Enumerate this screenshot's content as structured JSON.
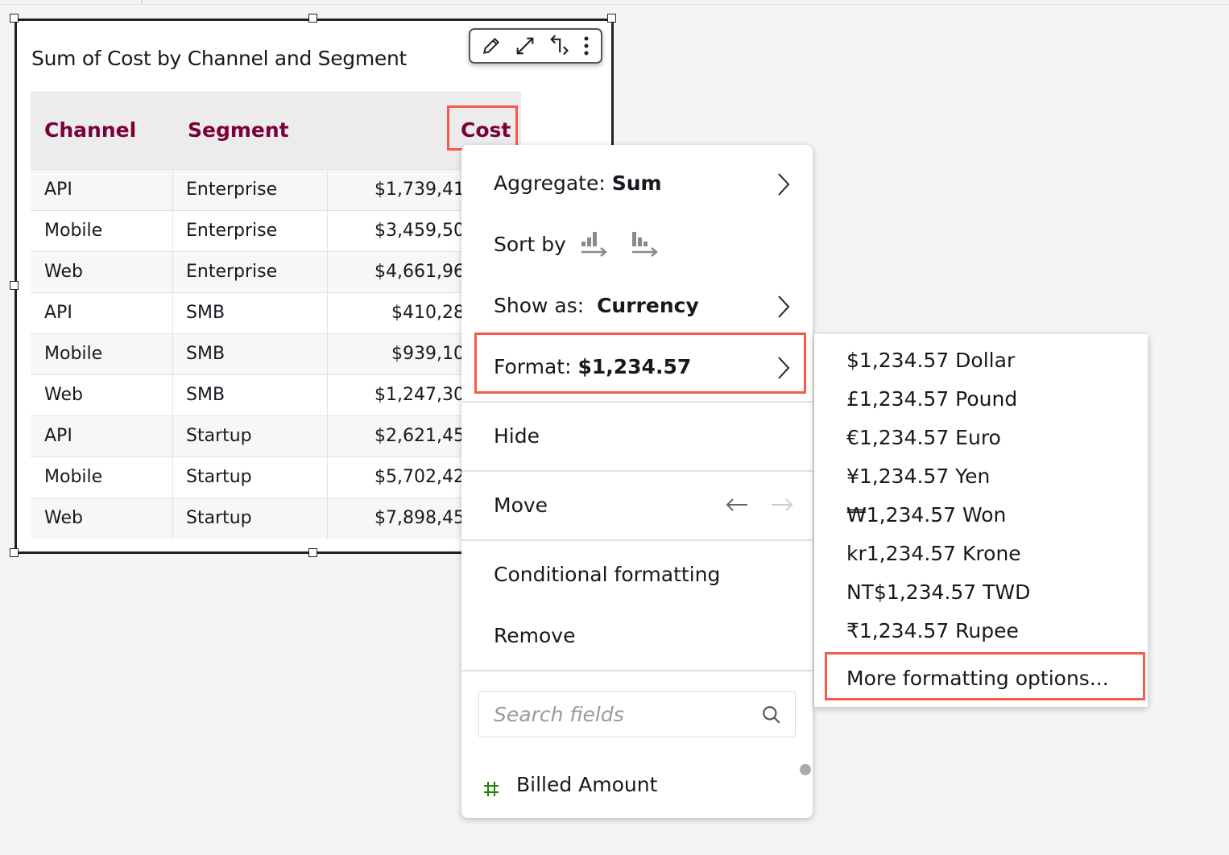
{
  "visual": {
    "title": "Sum of Cost by Channel and Segment",
    "toolbar": [
      "pencil-icon",
      "expand-icon",
      "swap-icon",
      "more-vertical-icon"
    ],
    "table": {
      "columns": [
        "Channel",
        "Segment",
        "Cost"
      ],
      "rows": [
        [
          "API",
          "Enterprise",
          "$1,739,41"
        ],
        [
          "Mobile",
          "Enterprise",
          "$3,459,50"
        ],
        [
          "Web",
          "Enterprise",
          "$4,661,96"
        ],
        [
          "API",
          "SMB",
          "$410,28"
        ],
        [
          "Mobile",
          "SMB",
          "$939,10"
        ],
        [
          "Web",
          "SMB",
          "$1,247,30"
        ],
        [
          "API",
          "Startup",
          "$2,621,45"
        ],
        [
          "Mobile",
          "Startup",
          "$5,702,42"
        ],
        [
          "Web",
          "Startup",
          "$7,898,45"
        ]
      ],
      "header_color": "#7a0038"
    }
  },
  "menu": {
    "aggregate_label": "Aggregate:",
    "aggregate_value": "Sum",
    "sort_label": "Sort by",
    "show_as_label": "Show as:",
    "show_as_value": "Currency",
    "format_label": "Format:",
    "format_value": "$1,234.57",
    "hide": "Hide",
    "move": "Move",
    "conditional_formatting": "Conditional formatting",
    "remove": "Remove",
    "search_placeholder": "Search fields",
    "field_item": "Billed Amount",
    "field_icon_color": "#1d8102"
  },
  "submenu": {
    "items": [
      "$1,234.57 Dollar",
      "£1,234.57 Pound",
      "€1,234.57 Euro",
      "¥1,234.57 Yen",
      "₩1,234.57 Won",
      "kr1,234.57 Krone",
      "NT$1,234.57 TWD",
      "₹1,234.57 Rupee"
    ],
    "more": "More formatting options..."
  },
  "highlight_color": "#f35b4c"
}
